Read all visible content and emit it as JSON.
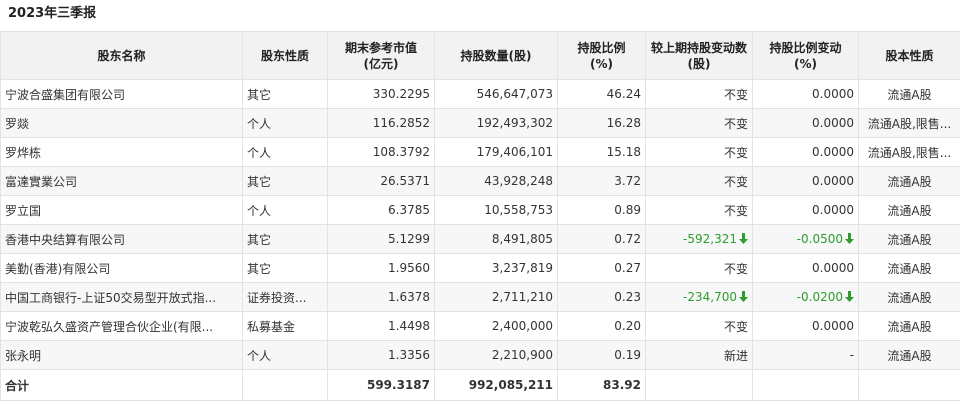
{
  "period_title": "2023年三季报",
  "columns": {
    "name": "股东名称",
    "type": "股东性质",
    "value": "期末参考市值\n(亿元)",
    "shares": "持股数量(股)",
    "ratio": "持股比例\n(%)",
    "change": "较上期持股变动数(股)",
    "ratio_change": "持股比例变动\n(%)",
    "share_type": "股本性质"
  },
  "rows": [
    {
      "name": "宁波合盛集团有限公司",
      "type": "其它",
      "value": "330.2295",
      "shares": "546,647,073",
      "ratio": "46.24",
      "change": "不变",
      "change_dir": "",
      "ratio_change": "0.0000",
      "ratio_dir": "",
      "share_type": "流通A股"
    },
    {
      "name": "罗燚",
      "type": "个人",
      "value": "116.2852",
      "shares": "192,493,302",
      "ratio": "16.28",
      "change": "不变",
      "change_dir": "",
      "ratio_change": "0.0000",
      "ratio_dir": "",
      "share_type": "流通A股,限售..."
    },
    {
      "name": "罗烨栋",
      "type": "个人",
      "value": "108.3792",
      "shares": "179,406,101",
      "ratio": "15.18",
      "change": "不变",
      "change_dir": "",
      "ratio_change": "0.0000",
      "ratio_dir": "",
      "share_type": "流通A股,限售..."
    },
    {
      "name": "富達實業公司",
      "type": "其它",
      "value": "26.5371",
      "shares": "43,928,248",
      "ratio": "3.72",
      "change": "不变",
      "change_dir": "",
      "ratio_change": "0.0000",
      "ratio_dir": "",
      "share_type": "流通A股"
    },
    {
      "name": "罗立国",
      "type": "个人",
      "value": "6.3785",
      "shares": "10,558,753",
      "ratio": "0.89",
      "change": "不变",
      "change_dir": "",
      "ratio_change": "0.0000",
      "ratio_dir": "",
      "share_type": "流通A股"
    },
    {
      "name": "香港中央结算有限公司",
      "type": "其它",
      "value": "5.1299",
      "shares": "8,491,805",
      "ratio": "0.72",
      "change": "-592,321",
      "change_dir": "down",
      "ratio_change": "-0.0500",
      "ratio_dir": "down",
      "share_type": "流通A股"
    },
    {
      "name": "美勤(香港)有限公司",
      "type": "其它",
      "value": "1.9560",
      "shares": "3,237,819",
      "ratio": "0.27",
      "change": "不变",
      "change_dir": "",
      "ratio_change": "0.0000",
      "ratio_dir": "",
      "share_type": "流通A股"
    },
    {
      "name": "中国工商银行-上证50交易型开放式指...",
      "type": "证券投资...",
      "value": "1.6378",
      "shares": "2,711,210",
      "ratio": "0.23",
      "change": "-234,700",
      "change_dir": "down",
      "ratio_change": "-0.0200",
      "ratio_dir": "down",
      "share_type": "流通A股"
    },
    {
      "name": "宁波乾弘久盛资产管理合伙企业(有限...",
      "type": "私募基金",
      "value": "1.4498",
      "shares": "2,400,000",
      "ratio": "0.20",
      "change": "不变",
      "change_dir": "",
      "ratio_change": "0.0000",
      "ratio_dir": "",
      "share_type": "流通A股"
    },
    {
      "name": "张永明",
      "type": "个人",
      "value": "1.3356",
      "shares": "2,210,900",
      "ratio": "0.19",
      "change": "新进",
      "change_dir": "",
      "ratio_change": "-",
      "ratio_dir": "",
      "share_type": "流通A股"
    }
  ],
  "total": {
    "label": "合计",
    "value": "599.3187",
    "shares": "992,085,211",
    "ratio": "83.92"
  },
  "colors": {
    "down": "#2e9c2e",
    "corner": "#ff6a00"
  },
  "icons": {
    "down": "arrow-down-icon",
    "corner": "corner-mark-icon"
  }
}
